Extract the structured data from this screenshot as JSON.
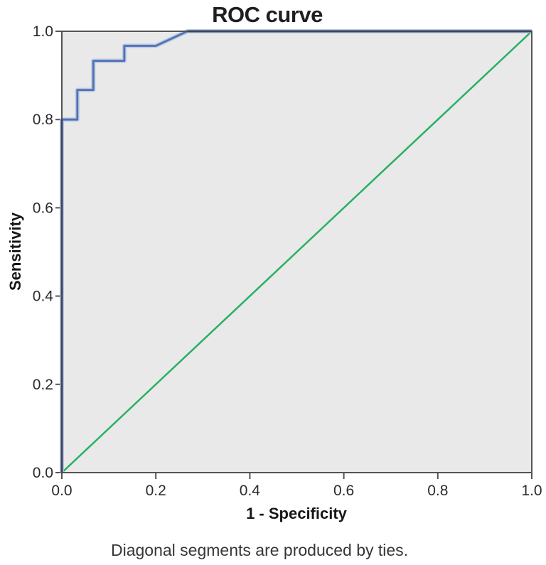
{
  "title": "ROC curve",
  "axes": {
    "x": {
      "label": "1 - Specificity",
      "ticks": [
        "0.0",
        "0.2",
        "0.4",
        "0.6",
        "0.8",
        "1.0"
      ]
    },
    "y": {
      "label": "Sensitivity",
      "ticks": [
        "0.0",
        "0.2",
        "0.4",
        "0.6",
        "0.8",
        "1.0"
      ]
    }
  },
  "footnote": "Diagonal segments are produced by ties.",
  "colors": {
    "plot_bg": "#e9e9e9",
    "frame": "#545454",
    "tick": "#545454",
    "curve": "#4d72b8",
    "curve_halo": "#b7c4de",
    "curve_on_frame": "#3a4660",
    "reference": "#28b064"
  },
  "chart_data": {
    "type": "line",
    "title": "ROC curve",
    "xlabel": "1 - Specificity",
    "ylabel": "Sensitivity",
    "xlim": [
      0,
      1
    ],
    "ylim": [
      0,
      1
    ],
    "xticks": [
      0.0,
      0.2,
      0.4,
      0.6,
      0.8,
      1.0
    ],
    "yticks": [
      0.0,
      0.2,
      0.4,
      0.6,
      0.8,
      1.0
    ],
    "grid": false,
    "legend": false,
    "footnote": "Diagonal segments are produced by ties.",
    "series": [
      {
        "name": "ROC curve",
        "color": "#4d72b8",
        "points": [
          [
            0,
            0
          ],
          [
            0,
            0.8
          ],
          [
            0.033,
            0.8
          ],
          [
            0.033,
            0.867
          ],
          [
            0.067,
            0.867
          ],
          [
            0.067,
            0.933
          ],
          [
            0.133,
            0.933
          ],
          [
            0.133,
            0.967
          ],
          [
            0.2,
            0.967
          ],
          [
            0.267,
            1.0
          ],
          [
            1.0,
            1.0
          ]
        ]
      },
      {
        "name": "Reference line",
        "color": "#28b064",
        "points": [
          [
            0,
            0
          ],
          [
            1,
            1
          ]
        ]
      }
    ]
  }
}
